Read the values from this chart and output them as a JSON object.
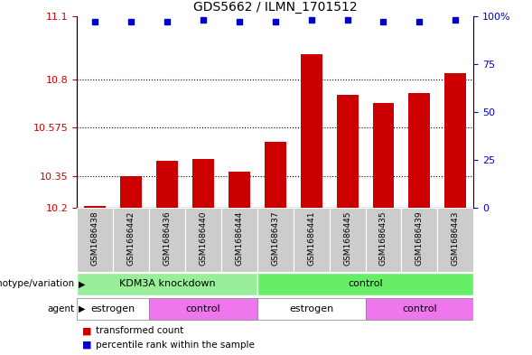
{
  "title": "GDS5662 / ILMN_1701512",
  "samples": [
    "GSM1686438",
    "GSM1686442",
    "GSM1686436",
    "GSM1686440",
    "GSM1686444",
    "GSM1686437",
    "GSM1686441",
    "GSM1686445",
    "GSM1686435",
    "GSM1686439",
    "GSM1686443"
  ],
  "bar_values": [
    10.21,
    10.35,
    10.42,
    10.43,
    10.37,
    10.51,
    10.92,
    10.73,
    10.69,
    10.74,
    10.83
  ],
  "percentile_values": [
    97,
    97,
    97,
    98,
    97,
    97,
    98,
    98,
    97,
    97,
    98
  ],
  "ymin": 10.2,
  "ymax": 11.1,
  "yticks": [
    10.2,
    10.35,
    10.575,
    10.8,
    11.1
  ],
  "ytick_labels": [
    "10.2",
    "10.35",
    "10.575",
    "10.8",
    "11.1"
  ],
  "right_yticks": [
    0,
    25,
    50,
    75,
    100
  ],
  "right_ytick_labels": [
    "0",
    "25",
    "50",
    "75",
    "100%"
  ],
  "bar_color": "#cc0000",
  "percentile_color": "#0000cc",
  "genotype_groups": [
    {
      "label": "KDM3A knockdown",
      "start": 0,
      "end": 5,
      "color": "#99ee99"
    },
    {
      "label": "control",
      "start": 5,
      "end": 11,
      "color": "#66ee66"
    }
  ],
  "agent_groups": [
    {
      "label": "estrogen",
      "start": 0,
      "end": 2,
      "color": "#ffffff"
    },
    {
      "label": "control",
      "start": 2,
      "end": 5,
      "color": "#ee77ee"
    },
    {
      "label": "estrogen",
      "start": 5,
      "end": 8,
      "color": "#ffffff"
    },
    {
      "label": "control",
      "start": 8,
      "end": 11,
      "color": "#ee77ee"
    }
  ],
  "left_label_genotype": "genotype/variation",
  "left_label_agent": "agent",
  "legend_items": [
    {
      "label": "transformed count",
      "color": "#cc0000"
    },
    {
      "label": "percentile rank within the sample",
      "color": "#0000cc"
    }
  ],
  "tick_color_left": "#cc0000",
  "tick_color_right": "#0000cc",
  "grid_color": "#000000",
  "sample_bg_color": "#cccccc"
}
